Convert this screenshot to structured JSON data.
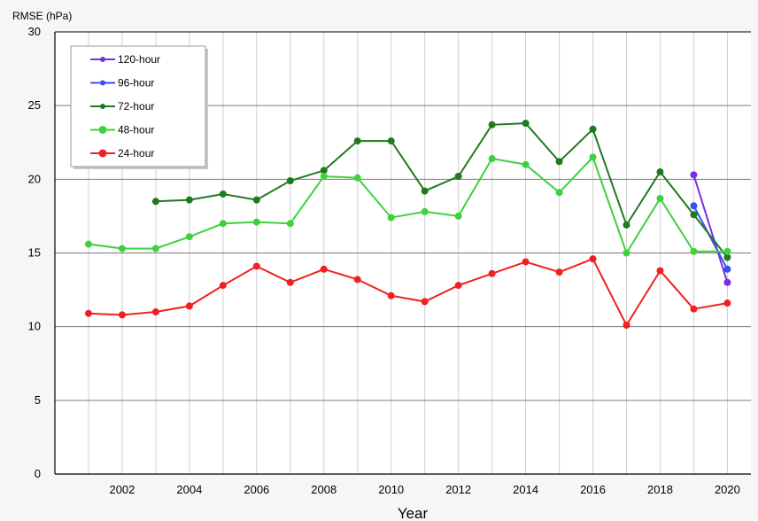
{
  "chart_data": {
    "type": "line",
    "ylabel": "RMSE (hPa)",
    "xlabel": "Year",
    "xlim": [
      2000,
      2020.7
    ],
    "ylim": [
      0,
      30
    ],
    "y_ticks": [
      0,
      5,
      10,
      15,
      20,
      25,
      30
    ],
    "x_ticks": [
      2002,
      2004,
      2006,
      2008,
      2010,
      2012,
      2014,
      2016,
      2018,
      2020
    ],
    "x_tick_labels": [
      "2002",
      "2004",
      "2006",
      "2008",
      "2010",
      "2012",
      "2014",
      "2016",
      "2018",
      "2020"
    ],
    "grid": true,
    "legend_position": "top-left",
    "series": [
      {
        "name": "120-hour",
        "color": "#7b2fe0",
        "points": [
          [
            2019,
            20.3
          ],
          [
            2020,
            13.0
          ]
        ]
      },
      {
        "name": "96-hour",
        "color": "#3a4ff0",
        "points": [
          [
            2019,
            18.2
          ],
          [
            2020,
            13.9
          ]
        ]
      },
      {
        "name": "72-hour",
        "color": "#1f7a1f",
        "points": [
          [
            2003,
            18.5
          ],
          [
            2004,
            18.6
          ],
          [
            2005,
            19.0
          ],
          [
            2006,
            18.6
          ],
          [
            2007,
            19.9
          ],
          [
            2008,
            20.6
          ],
          [
            2009,
            22.6
          ],
          [
            2010,
            22.6
          ],
          [
            2011,
            19.2
          ],
          [
            2012,
            20.2
          ],
          [
            2013,
            23.7
          ],
          [
            2014,
            23.8
          ],
          [
            2015,
            21.2
          ],
          [
            2016,
            23.4
          ],
          [
            2017,
            16.9
          ],
          [
            2018,
            20.5
          ],
          [
            2019,
            17.6
          ],
          [
            2020,
            14.7
          ]
        ]
      },
      {
        "name": "48-hour",
        "color": "#3ed13e",
        "points": [
          [
            2001,
            15.6
          ],
          [
            2002,
            15.3
          ],
          [
            2003,
            15.3
          ],
          [
            2004,
            16.1
          ],
          [
            2005,
            17.0
          ],
          [
            2006,
            17.1
          ],
          [
            2007,
            17.0
          ],
          [
            2008,
            20.2
          ],
          [
            2009,
            20.1
          ],
          [
            2010,
            17.4
          ],
          [
            2011,
            17.8
          ],
          [
            2012,
            17.5
          ],
          [
            2013,
            21.4
          ],
          [
            2014,
            21.0
          ],
          [
            2015,
            19.1
          ],
          [
            2016,
            21.5
          ],
          [
            2017,
            15.0
          ],
          [
            2018,
            18.7
          ],
          [
            2019,
            15.1
          ],
          [
            2020,
            15.1
          ]
        ]
      },
      {
        "name": "24-hour",
        "color": "#f02020",
        "points": [
          [
            2001,
            10.9
          ],
          [
            2002,
            10.8
          ],
          [
            2003,
            11.0
          ],
          [
            2004,
            11.4
          ],
          [
            2005,
            12.8
          ],
          [
            2006,
            14.1
          ],
          [
            2007,
            13.0
          ],
          [
            2008,
            13.9
          ],
          [
            2009,
            13.2
          ],
          [
            2010,
            12.1
          ],
          [
            2011,
            11.7
          ],
          [
            2012,
            12.8
          ],
          [
            2013,
            13.6
          ],
          [
            2014,
            14.4
          ],
          [
            2015,
            13.7
          ],
          [
            2016,
            14.6
          ],
          [
            2017,
            10.1
          ],
          [
            2018,
            13.8
          ],
          [
            2019,
            11.2
          ],
          [
            2020,
            11.6
          ]
        ]
      }
    ]
  }
}
